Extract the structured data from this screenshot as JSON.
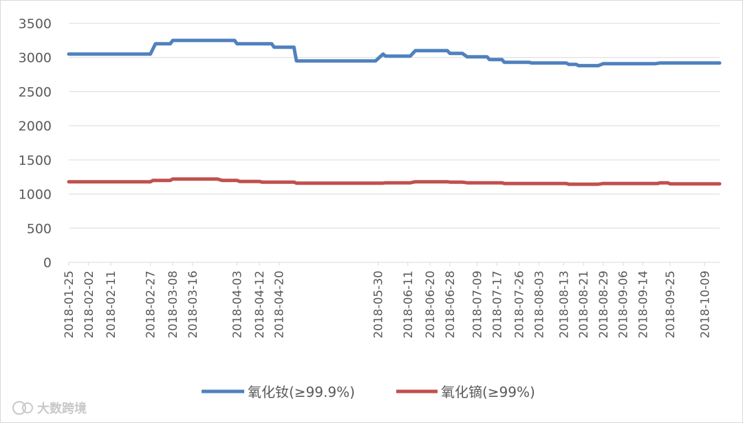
{
  "chart_data": {
    "type": "line",
    "x_tick_labels": [
      "2018-01-25",
      "2018-02-02",
      "2018-02-11",
      "2018-02-27",
      "2018-03-08",
      "2018-03-16",
      "2018-04-03",
      "2018-04-12",
      "2018-04-20",
      "2018-05-30",
      "2018-06-11",
      "2018-06-20",
      "2018-06-28",
      "2018-07-09",
      "2018-07-17",
      "2018-07-26",
      "2018-08-03",
      "2018-08-13",
      "2018-08-21",
      "2018-08-29",
      "2018-09-06",
      "2018-09-14",
      "2018-09-25",
      "2018-10-09"
    ],
    "ylim": [
      0,
      3500
    ],
    "yticks": [
      0,
      500,
      1000,
      1500,
      2000,
      2500,
      3000,
      3500
    ],
    "grid": true,
    "legend_position": "bottom",
    "series": [
      {
        "name": "氧化钕(≥99.9%)",
        "color": "#4f81bd",
        "points": [
          [
            "2018-01-25",
            3050
          ],
          [
            "2018-02-27",
            3050
          ],
          [
            "2018-03-01",
            3200
          ],
          [
            "2018-03-07",
            3200
          ],
          [
            "2018-03-08",
            3250
          ],
          [
            "2018-04-02",
            3250
          ],
          [
            "2018-04-03",
            3200
          ],
          [
            "2018-04-17",
            3200
          ],
          [
            "2018-04-18",
            3150
          ],
          [
            "2018-04-26",
            3150
          ],
          [
            "2018-04-27",
            2950
          ],
          [
            "2018-05-29",
            2950
          ],
          [
            "2018-06-01",
            3050
          ],
          [
            "2018-06-02",
            3020
          ],
          [
            "2018-06-12",
            3020
          ],
          [
            "2018-06-14",
            3100
          ],
          [
            "2018-06-27",
            3100
          ],
          [
            "2018-06-28",
            3060
          ],
          [
            "2018-07-03",
            3060
          ],
          [
            "2018-07-05",
            3010
          ],
          [
            "2018-07-13",
            3010
          ],
          [
            "2018-07-14",
            2970
          ],
          [
            "2018-07-19",
            2970
          ],
          [
            "2018-07-20",
            2930
          ],
          [
            "2018-07-30",
            2930
          ],
          [
            "2018-07-31",
            2920
          ],
          [
            "2018-08-14",
            2920
          ],
          [
            "2018-08-15",
            2900
          ],
          [
            "2018-08-18",
            2900
          ],
          [
            "2018-08-19",
            2880
          ],
          [
            "2018-08-27",
            2880
          ],
          [
            "2018-08-29",
            2910
          ],
          [
            "2018-09-19",
            2910
          ],
          [
            "2018-09-21",
            2920
          ],
          [
            "2018-10-15",
            2920
          ]
        ]
      },
      {
        "name": "氧化镝(≥99%)",
        "color": "#c0504d",
        "points": [
          [
            "2018-01-25",
            1180
          ],
          [
            "2018-02-27",
            1180
          ],
          [
            "2018-02-28",
            1200
          ],
          [
            "2018-03-07",
            1200
          ],
          [
            "2018-03-08",
            1220
          ],
          [
            "2018-03-26",
            1220
          ],
          [
            "2018-03-28",
            1200
          ],
          [
            "2018-04-03",
            1200
          ],
          [
            "2018-04-04",
            1185
          ],
          [
            "2018-04-12",
            1185
          ],
          [
            "2018-04-13",
            1175
          ],
          [
            "2018-04-26",
            1175
          ],
          [
            "2018-04-27",
            1160
          ],
          [
            "2018-06-01",
            1160
          ],
          [
            "2018-06-02",
            1165
          ],
          [
            "2018-06-12",
            1165
          ],
          [
            "2018-06-14",
            1180
          ],
          [
            "2018-06-27",
            1180
          ],
          [
            "2018-06-28",
            1175
          ],
          [
            "2018-07-03",
            1175
          ],
          [
            "2018-07-05",
            1165
          ],
          [
            "2018-07-19",
            1165
          ],
          [
            "2018-07-20",
            1155
          ],
          [
            "2018-08-14",
            1155
          ],
          [
            "2018-08-15",
            1145
          ],
          [
            "2018-08-27",
            1145
          ],
          [
            "2018-08-29",
            1155
          ],
          [
            "2018-09-20",
            1155
          ],
          [
            "2018-09-21",
            1165
          ],
          [
            "2018-09-24",
            1165
          ],
          [
            "2018-09-25",
            1150
          ],
          [
            "2018-10-15",
            1150
          ]
        ]
      }
    ]
  },
  "watermark": "大数跨境"
}
